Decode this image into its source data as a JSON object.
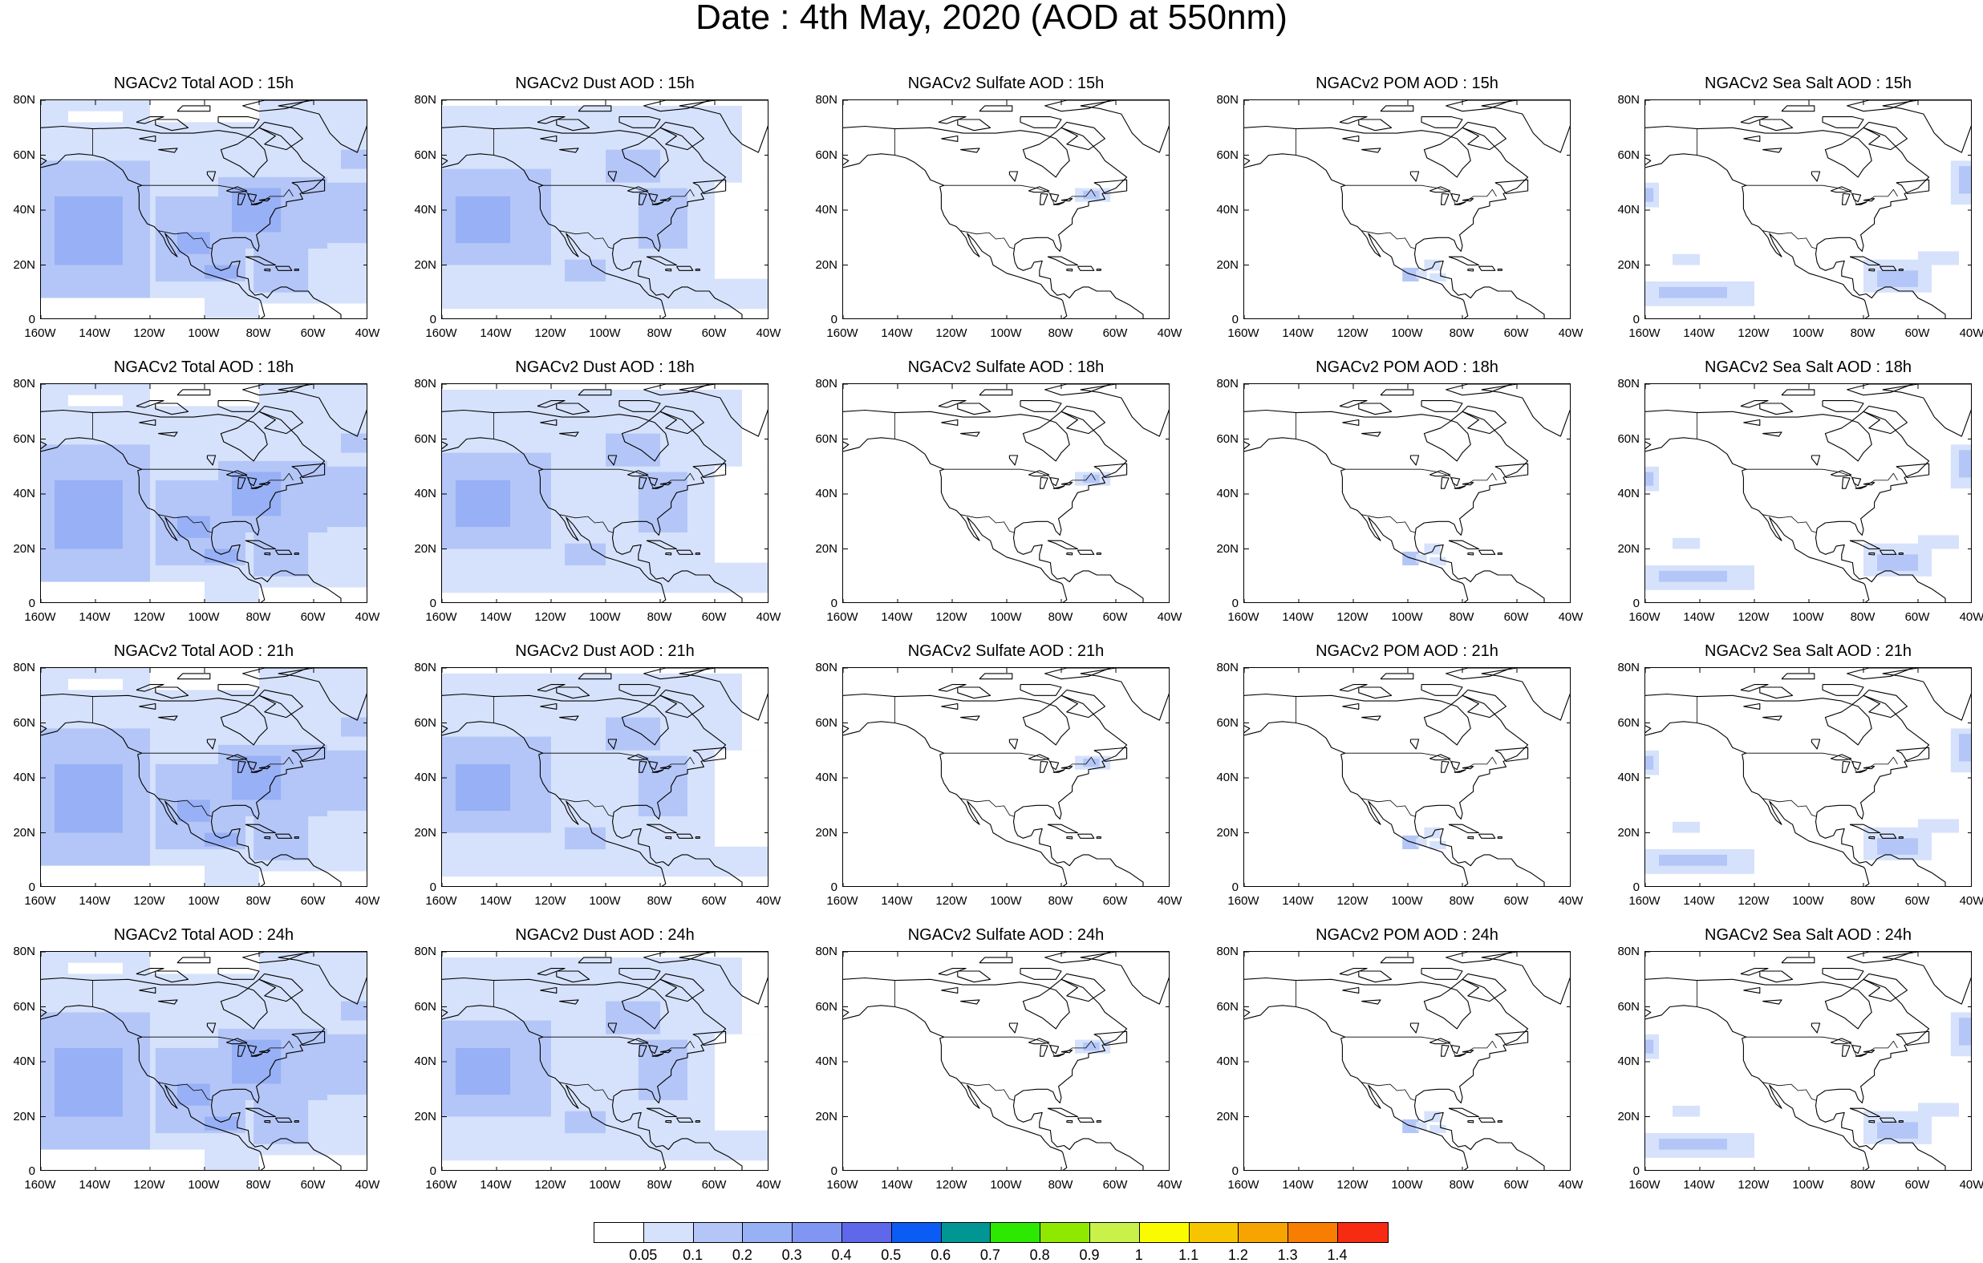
{
  "title": "Date : 4th May, 2020 (AOD at 550nm)",
  "lat_ticks": [
    "80N",
    "60N",
    "40N",
    "20N",
    "0"
  ],
  "lon_ticks": [
    "160W",
    "140W",
    "120W",
    "100W",
    "80W",
    "60W",
    "40W"
  ],
  "colorbar": {
    "labels": [
      "0.05",
      "0.1",
      "0.2",
      "0.3",
      "0.4",
      "0.5",
      "0.6",
      "0.7",
      "0.8",
      "0.9",
      "1",
      "1.1",
      "1.2",
      "1.3",
      "1.4"
    ],
    "colors": [
      "#ffffff",
      "#d6e2fb",
      "#b4c6f7",
      "#98b0f5",
      "#8196f3",
      "#5f68ea",
      "#0b5cf4",
      "#019694",
      "#2de800",
      "#8fe800",
      "#c8f24a",
      "#fbfb00",
      "#f7c400",
      "#f7a400",
      "#f77e00",
      "#f72b12"
    ]
  },
  "panels": [
    {
      "title": "NGACv2 Total AOD : 15h",
      "field": "total"
    },
    {
      "title": "NGACv2 Dust AOD : 15h",
      "field": "dust"
    },
    {
      "title": "NGACv2 Sulfate AOD : 15h",
      "field": "sulfate"
    },
    {
      "title": "NGACv2 POM AOD : 15h",
      "field": "pom"
    },
    {
      "title": "NGACv2 Sea Salt AOD : 15h",
      "field": "seasalt"
    },
    {
      "title": "NGACv2 Total AOD : 18h",
      "field": "total"
    },
    {
      "title": "NGACv2 Dust AOD : 18h",
      "field": "dust"
    },
    {
      "title": "NGACv2 Sulfate AOD : 18h",
      "field": "sulfate"
    },
    {
      "title": "NGACv2 POM AOD : 18h",
      "field": "pom"
    },
    {
      "title": "NGACv2 Sea Salt AOD : 18h",
      "field": "seasalt"
    },
    {
      "title": "NGACv2 Total AOD : 21h",
      "field": "total"
    },
    {
      "title": "NGACv2 Dust AOD : 21h",
      "field": "dust"
    },
    {
      "title": "NGACv2 Sulfate AOD : 21h",
      "field": "sulfate"
    },
    {
      "title": "NGACv2 POM AOD : 21h",
      "field": "pom"
    },
    {
      "title": "NGACv2 Sea Salt AOD : 21h",
      "field": "seasalt"
    },
    {
      "title": "NGACv2 Total AOD : 24h",
      "field": "total"
    },
    {
      "title": "NGACv2 Dust AOD : 24h",
      "field": "dust"
    },
    {
      "title": "NGACv2 Sulfate AOD : 24h",
      "field": "sulfate"
    },
    {
      "title": "NGACv2 POM AOD : 24h",
      "field": "pom"
    },
    {
      "title": "NGACv2 Sea Salt  AOD : 24h",
      "field": "seasalt"
    }
  ]
}
